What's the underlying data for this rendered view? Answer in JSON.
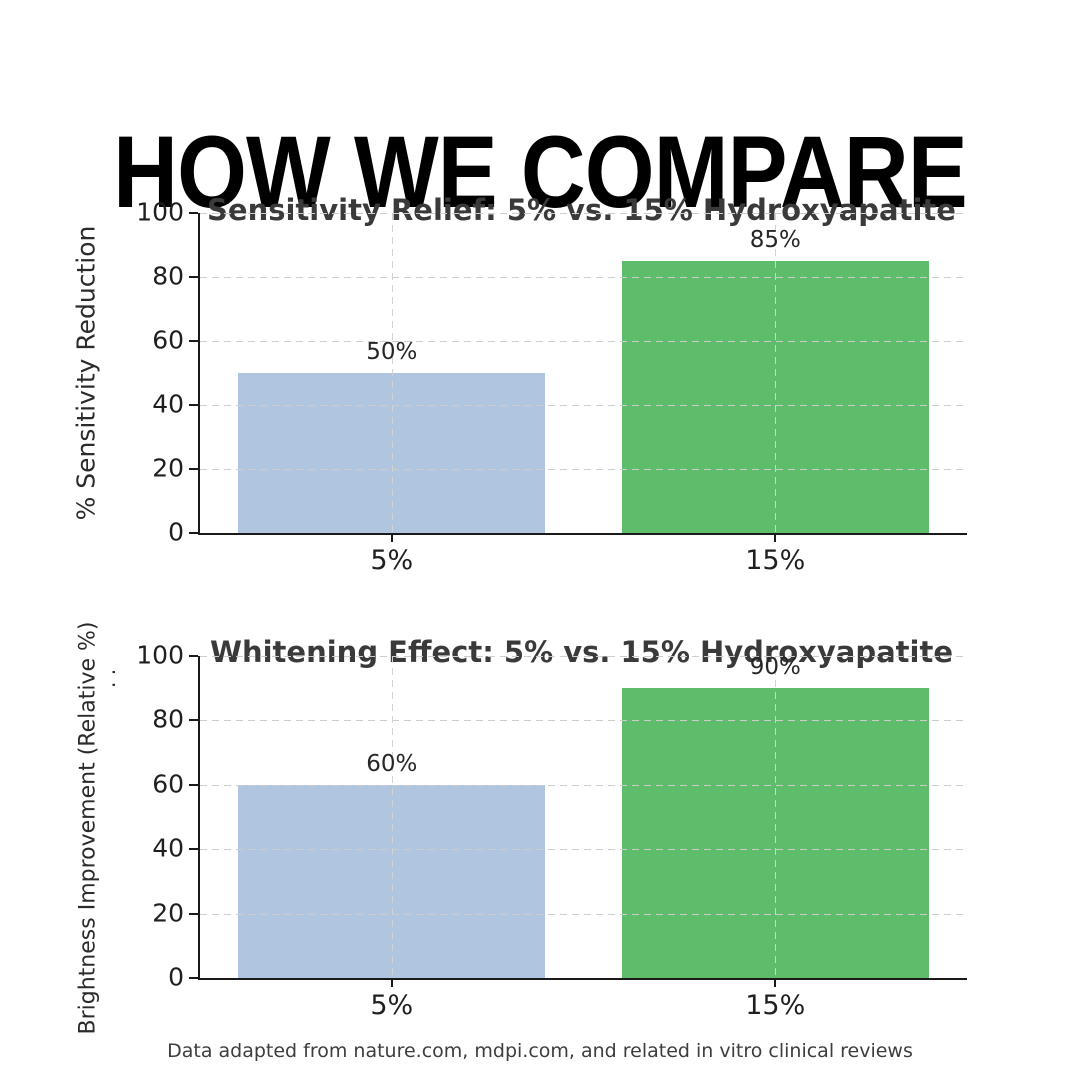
{
  "page": {
    "title": "HOW WE COMPARE",
    "footer": "Data adapted from nature.com, mdpi.com, and related in vitro clinical reviews"
  },
  "colors": {
    "bar_blue": "#afc5e0",
    "bar_green": "#5dbd6b",
    "grid": "#cdcdcd",
    "axis": "#1a1a1a",
    "chart_title_text": "#3a3a3a"
  },
  "chart_data": [
    {
      "type": "bar",
      "title": "Sensitivity Relief: 5% vs. 15% Hydroxyapatite",
      "ylabel": "% Sensitivity Reduction",
      "categories": [
        "5%",
        "15%"
      ],
      "values": [
        50,
        85
      ],
      "bar_labels": [
        "50%",
        "85%"
      ],
      "bar_colors": [
        "#afc5e0",
        "#5dbd6b"
      ],
      "ylim": [
        0,
        100
      ],
      "yticks": [
        0,
        20,
        40,
        60,
        80,
        100
      ],
      "grid": "dashed",
      "legend": "none"
    },
    {
      "type": "bar",
      "title": "Whitening Effect: 5% vs. 15% Hydroxyapatite",
      "ylabel": "Brightness Improvement (Relative %)",
      "ylabel_note": ". .",
      "categories": [
        "5%",
        "15%"
      ],
      "values": [
        60,
        90
      ],
      "bar_labels": [
        "60%",
        "90%"
      ],
      "bar_colors": [
        "#afc5e0",
        "#5dbd6b"
      ],
      "ylim": [
        0,
        100
      ],
      "yticks": [
        0,
        20,
        40,
        60,
        80,
        100
      ],
      "grid": "dashed",
      "legend": "none"
    }
  ]
}
